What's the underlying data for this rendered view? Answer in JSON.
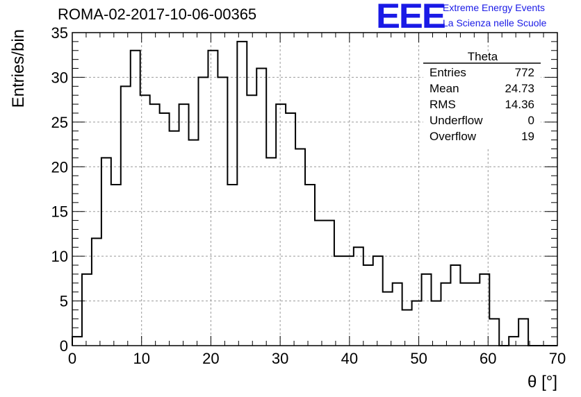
{
  "header": {
    "run_title": "ROMA-02-2017-10-06-00365",
    "logo_text": "EEE",
    "logo_line1": "Extreme Energy Events",
    "logo_line2": "La Scienza nelle Scuole",
    "logo_color": "#1a1ae6"
  },
  "chart_data": {
    "type": "histogram",
    "title": "ROMA-02-2017-10-06-00365",
    "xlabel": "θ [°]",
    "ylabel": "Entries/bin",
    "xlim": [
      0,
      70
    ],
    "ylim": [
      0,
      35
    ],
    "xticks": [
      0,
      10,
      20,
      30,
      40,
      50,
      60,
      70
    ],
    "yticks": [
      0,
      5,
      10,
      15,
      20,
      25,
      30,
      35
    ],
    "grid": true,
    "bin_width": 1.4,
    "bin_start": 0,
    "values": [
      1,
      8,
      12,
      21,
      18,
      29,
      33,
      28,
      27,
      26,
      24,
      27,
      23,
      30,
      33,
      30,
      18,
      34,
      28,
      31,
      21,
      27,
      26,
      22,
      18,
      14,
      14,
      10,
      10,
      11,
      9,
      10,
      6,
      7,
      4,
      5,
      8,
      5,
      7,
      9,
      7,
      7,
      8,
      3,
      0,
      1,
      3,
      0,
      0,
      0
    ],
    "stats": {
      "title": "Theta",
      "rows": [
        {
          "label": "Entries",
          "value": "772"
        },
        {
          "label": "Mean",
          "value": "24.73"
        },
        {
          "label": "RMS",
          "value": "14.36"
        },
        {
          "label": "Underflow",
          "value": "0"
        },
        {
          "label": "Overflow",
          "value": "19"
        }
      ]
    }
  }
}
